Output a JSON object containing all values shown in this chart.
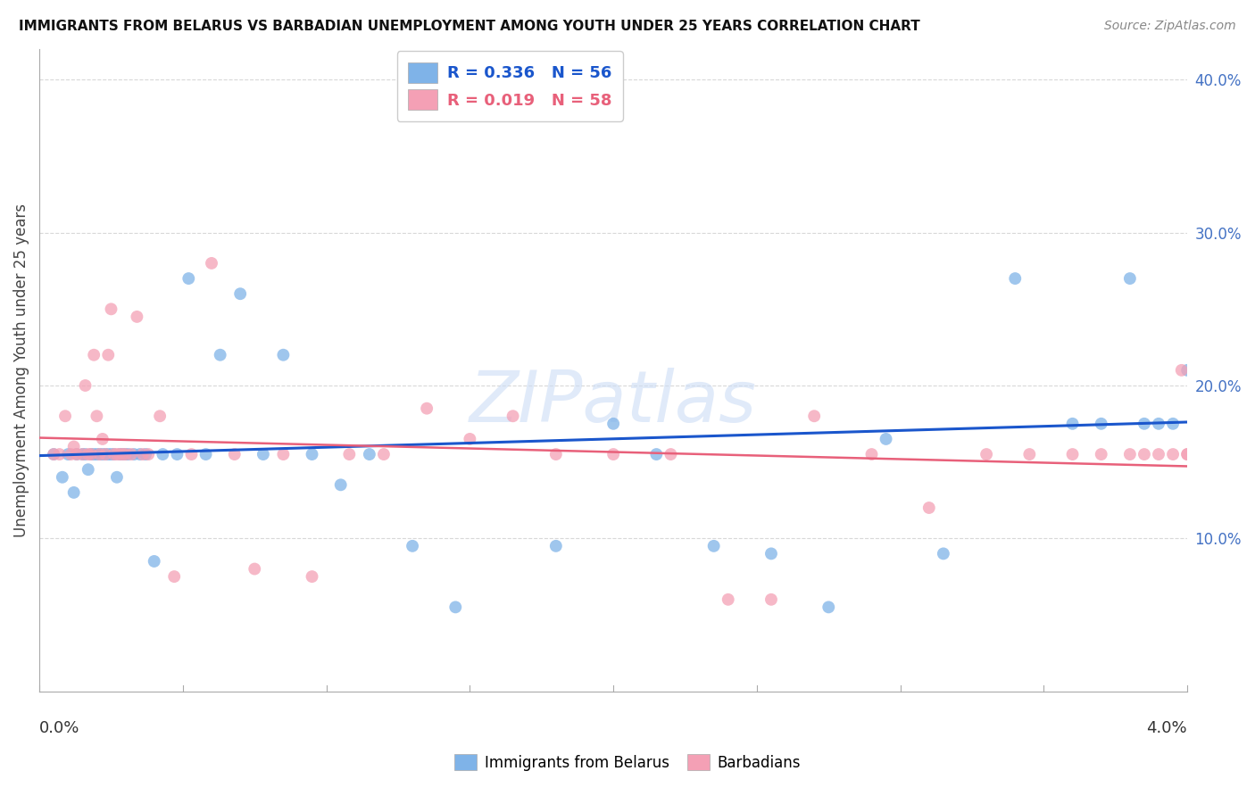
{
  "title": "IMMIGRANTS FROM BELARUS VS BARBADIAN UNEMPLOYMENT AMONG YOUTH UNDER 25 YEARS CORRELATION CHART",
  "source": "Source: ZipAtlas.com",
  "ylabel": "Unemployment Among Youth under 25 years",
  "right_yticks": [
    "40.0%",
    "30.0%",
    "20.0%",
    "10.0%"
  ],
  "right_ytick_vals": [
    0.4,
    0.3,
    0.2,
    0.1
  ],
  "legend_color1": "#7fb3e8",
  "legend_color2": "#f4a0b5",
  "series1_color": "#7fb3e8",
  "series2_color": "#f4a0b5",
  "trendline1_color": "#1a56cc",
  "trendline2_color": "#e8607a",
  "legend_label1": "R = 0.336   N = 56",
  "legend_label2": "R = 0.019   N = 58",
  "legend_text_color1": "#1a56cc",
  "legend_text_color2": "#e8607a",
  "bottom_legend_label1": "Immigrants from Belarus",
  "bottom_legend_label2": "Barbadians",
  "watermark": "ZIPatlas",
  "series1_x": [
    0.0005,
    0.0008,
    0.001,
    0.0012,
    0.0013,
    0.0015,
    0.0016,
    0.0017,
    0.0018,
    0.0019,
    0.002,
    0.0021,
    0.0022,
    0.0023,
    0.0024,
    0.0025,
    0.0026,
    0.0027,
    0.0028,
    0.0029,
    0.003,
    0.0031,
    0.0033,
    0.0035,
    0.0037,
    0.004,
    0.0043,
    0.0048,
    0.0052,
    0.0058,
    0.0063,
    0.007,
    0.0078,
    0.0085,
    0.0095,
    0.0105,
    0.0115,
    0.013,
    0.0145,
    0.0165,
    0.018,
    0.02,
    0.0215,
    0.0235,
    0.0255,
    0.0275,
    0.0295,
    0.0315,
    0.034,
    0.036,
    0.037,
    0.038,
    0.0385,
    0.039,
    0.0395,
    0.04
  ],
  "series1_y": [
    0.155,
    0.14,
    0.155,
    0.13,
    0.155,
    0.155,
    0.155,
    0.145,
    0.155,
    0.155,
    0.155,
    0.155,
    0.155,
    0.155,
    0.155,
    0.155,
    0.155,
    0.14,
    0.155,
    0.155,
    0.155,
    0.155,
    0.155,
    0.155,
    0.155,
    0.085,
    0.155,
    0.155,
    0.27,
    0.155,
    0.22,
    0.26,
    0.155,
    0.22,
    0.155,
    0.135,
    0.155,
    0.095,
    0.055,
    0.38,
    0.095,
    0.175,
    0.155,
    0.095,
    0.09,
    0.055,
    0.165,
    0.09,
    0.27,
    0.175,
    0.175,
    0.27,
    0.175,
    0.175,
    0.175,
    0.21
  ],
  "series2_x": [
    0.0005,
    0.0007,
    0.0009,
    0.0011,
    0.0012,
    0.0013,
    0.0015,
    0.0016,
    0.0017,
    0.0018,
    0.0019,
    0.002,
    0.0021,
    0.0022,
    0.0023,
    0.0024,
    0.0025,
    0.0026,
    0.0027,
    0.0028,
    0.0029,
    0.003,
    0.0032,
    0.0034,
    0.0036,
    0.0038,
    0.0042,
    0.0047,
    0.0053,
    0.006,
    0.0068,
    0.0075,
    0.0085,
    0.0095,
    0.0108,
    0.012,
    0.0135,
    0.015,
    0.0165,
    0.018,
    0.02,
    0.022,
    0.024,
    0.0255,
    0.027,
    0.029,
    0.031,
    0.033,
    0.0345,
    0.036,
    0.037,
    0.038,
    0.0385,
    0.039,
    0.0395,
    0.0398,
    0.04,
    0.04
  ],
  "series2_y": [
    0.155,
    0.155,
    0.18,
    0.155,
    0.16,
    0.155,
    0.155,
    0.2,
    0.155,
    0.155,
    0.22,
    0.18,
    0.155,
    0.165,
    0.155,
    0.22,
    0.25,
    0.155,
    0.155,
    0.155,
    0.155,
    0.155,
    0.155,
    0.245,
    0.155,
    0.155,
    0.18,
    0.075,
    0.155,
    0.28,
    0.155,
    0.08,
    0.155,
    0.075,
    0.155,
    0.155,
    0.185,
    0.165,
    0.18,
    0.155,
    0.155,
    0.155,
    0.06,
    0.06,
    0.18,
    0.155,
    0.12,
    0.155,
    0.155,
    0.155,
    0.155,
    0.155,
    0.155,
    0.155,
    0.155,
    0.21,
    0.155,
    0.155
  ],
  "xlim": [
    0.0,
    0.04
  ],
  "ylim": [
    0.0,
    0.42
  ],
  "background_color": "#ffffff",
  "grid_color": "#d8d8d8"
}
